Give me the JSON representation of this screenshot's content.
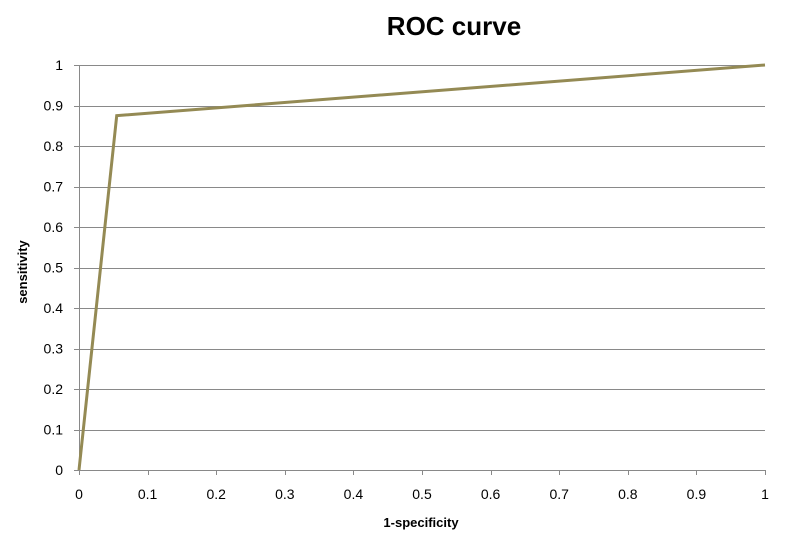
{
  "chart_data": {
    "type": "line",
    "title": "ROC curve",
    "xlabel": "1-specificity",
    "ylabel": "sensitivity",
    "xlim": [
      0,
      1
    ],
    "ylim": [
      0,
      1
    ],
    "x_ticks": [
      0,
      0.1,
      0.2,
      0.3,
      0.4,
      0.5,
      0.6,
      0.7,
      0.8,
      0.9,
      1
    ],
    "y_ticks": [
      0,
      0.1,
      0.2,
      0.3,
      0.4,
      0.5,
      0.6,
      0.7,
      0.8,
      0.9,
      1
    ],
    "x_tick_labels": [
      "0",
      "0.1",
      "0.2",
      "0.3",
      "0.4",
      "0.5",
      "0.6",
      "0.7",
      "0.8",
      "0.9",
      "1"
    ],
    "y_tick_labels": [
      "0",
      "0.1",
      "0.2",
      "0.3",
      "0.4",
      "0.5",
      "0.6",
      "0.7",
      "0.8",
      "0.9",
      "1"
    ],
    "grid": true,
    "legend": "none",
    "series": [
      {
        "color": "#948A54",
        "x": [
          0,
          0.055,
          1
        ],
        "y": [
          0,
          0.875,
          1
        ]
      }
    ]
  }
}
